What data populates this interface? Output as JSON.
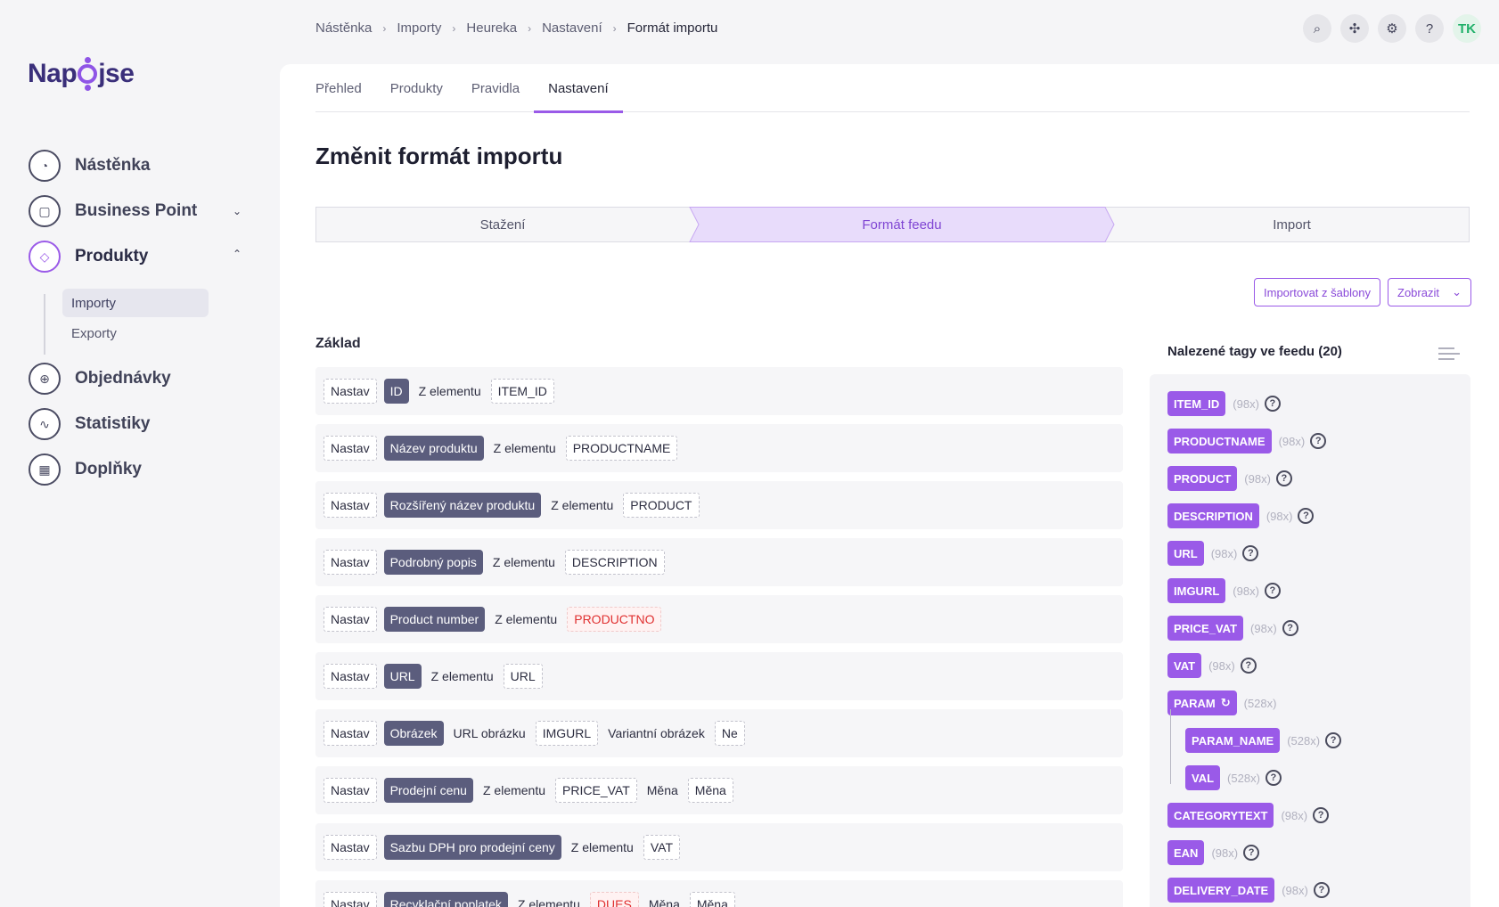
{
  "logo": {
    "text_pre": "Nap",
    "text_post": "jse"
  },
  "sidebar": {
    "items": [
      {
        "label": "Nástěnka",
        "icon": "dashboard-icon"
      },
      {
        "label": "Business Point",
        "icon": "bag-icon"
      },
      {
        "label": "Produkty",
        "icon": "tag-icon"
      },
      {
        "label": "Objednávky",
        "icon": "cart-icon"
      },
      {
        "label": "Statistiky",
        "icon": "chart-icon"
      },
      {
        "label": "Doplňky",
        "icon": "apps-icon"
      }
    ],
    "sub_items": [
      {
        "label": "Importy"
      },
      {
        "label": "Exporty"
      }
    ]
  },
  "breadcrumb": [
    "Nástěnka",
    "Importy",
    "Heureka",
    "Nastavení",
    "Formát importu"
  ],
  "header": {
    "avatar": "TK"
  },
  "tabs": [
    "Přehled",
    "Produkty",
    "Pravidla",
    "Nastavení"
  ],
  "page_title": "Změnit formát importu",
  "steps": [
    "Stažení",
    "Formát feedu",
    "Import"
  ],
  "actions": {
    "import_template": "Importovat z šablony",
    "show": "Zobrazit"
  },
  "section_title": "Základ",
  "mapping_rows": [
    {
      "parts": [
        {
          "t": "chip",
          "v": "Nastav"
        },
        {
          "t": "fld",
          "v": "ID"
        },
        {
          "t": "txt",
          "v": "Z elementu"
        },
        {
          "t": "chip",
          "v": "ITEM_ID"
        }
      ]
    },
    {
      "parts": [
        {
          "t": "chip",
          "v": "Nastav"
        },
        {
          "t": "fld",
          "v": "Název produktu"
        },
        {
          "t": "txt",
          "v": "Z elementu"
        },
        {
          "t": "chip",
          "v": "PRODUCTNAME"
        }
      ]
    },
    {
      "parts": [
        {
          "t": "chip",
          "v": "Nastav"
        },
        {
          "t": "fld",
          "v": "Rozšířený název produktu"
        },
        {
          "t": "txt",
          "v": "Z elementu"
        },
        {
          "t": "chip",
          "v": "PRODUCT"
        }
      ]
    },
    {
      "parts": [
        {
          "t": "chip",
          "v": "Nastav"
        },
        {
          "t": "fld",
          "v": "Podrobný popis"
        },
        {
          "t": "txt",
          "v": "Z elementu"
        },
        {
          "t": "chip",
          "v": "DESCRIPTION"
        }
      ]
    },
    {
      "parts": [
        {
          "t": "chip",
          "v": "Nastav"
        },
        {
          "t": "fld",
          "v": "Product number"
        },
        {
          "t": "txt",
          "v": "Z elementu"
        },
        {
          "t": "err",
          "v": "PRODUCTNO"
        }
      ]
    },
    {
      "parts": [
        {
          "t": "chip",
          "v": "Nastav"
        },
        {
          "t": "fld",
          "v": "URL"
        },
        {
          "t": "txt",
          "v": "Z elementu"
        },
        {
          "t": "chip",
          "v": "URL"
        }
      ]
    },
    {
      "parts": [
        {
          "t": "chip",
          "v": "Nastav"
        },
        {
          "t": "fld",
          "v": "Obrázek"
        },
        {
          "t": "txt",
          "v": "URL obrázku"
        },
        {
          "t": "chip",
          "v": "IMGURL"
        },
        {
          "t": "txt",
          "v": "Variantní obrázek"
        },
        {
          "t": "chip",
          "v": "Ne"
        }
      ]
    },
    {
      "parts": [
        {
          "t": "chip",
          "v": "Nastav"
        },
        {
          "t": "fld",
          "v": "Prodejní cenu"
        },
        {
          "t": "txt",
          "v": "Z elementu"
        },
        {
          "t": "chip",
          "v": "PRICE_VAT"
        },
        {
          "t": "txt",
          "v": "Měna"
        },
        {
          "t": "chip",
          "v": "Měna"
        }
      ]
    },
    {
      "parts": [
        {
          "t": "chip",
          "v": "Nastav"
        },
        {
          "t": "fld",
          "v": "Sazbu DPH pro prodejní ceny"
        },
        {
          "t": "txt",
          "v": "Z elementu"
        },
        {
          "t": "chip",
          "v": "VAT"
        }
      ]
    },
    {
      "parts": [
        {
          "t": "chip",
          "v": "Nastav"
        },
        {
          "t": "fld",
          "v": "Recyklační poplatek"
        },
        {
          "t": "txt",
          "v": "Z elementu"
        },
        {
          "t": "err",
          "v": "DUES"
        },
        {
          "t": "txt",
          "v": "Měna"
        },
        {
          "t": "chip",
          "v": "Měna"
        }
      ]
    }
  ],
  "tags_panel": {
    "title": "Nalezené tagy ve feedu (20)",
    "tags": [
      {
        "name": "ITEM_ID",
        "count": "(98x)",
        "help": "?"
      },
      {
        "name": "PRODUCTNAME",
        "count": "(98x)",
        "help": "?"
      },
      {
        "name": "PRODUCT",
        "count": "(98x)",
        "help": "?"
      },
      {
        "name": "DESCRIPTION",
        "count": "(98x)",
        "help": "?"
      },
      {
        "name": "URL",
        "count": "(98x)",
        "help": "?"
      },
      {
        "name": "IMGURL",
        "count": "(98x)",
        "help": "?"
      },
      {
        "name": "PRICE_VAT",
        "count": "(98x)",
        "help": "?"
      },
      {
        "name": "VAT",
        "count": "(98x)",
        "help": "?"
      },
      {
        "name": "PARAM",
        "count": "(528x)",
        "refresh": "↻"
      },
      {
        "name": "PARAM_NAME",
        "count": "(528x)",
        "help": "?",
        "child": true
      },
      {
        "name": "VAL",
        "count": "(528x)",
        "help": "?",
        "child": true
      },
      {
        "name": "CATEGORYTEXT",
        "count": "(98x)",
        "help": "?"
      },
      {
        "name": "EAN",
        "count": "(98x)",
        "help": "?"
      },
      {
        "name": "DELIVERY_DATE",
        "count": "(98x)",
        "help": "?"
      }
    ]
  },
  "colors": {
    "accent": "#9a5ae8",
    "field": "#5b5d7d",
    "error": "#e03030",
    "step_active_bg": "#e8dcfb"
  }
}
